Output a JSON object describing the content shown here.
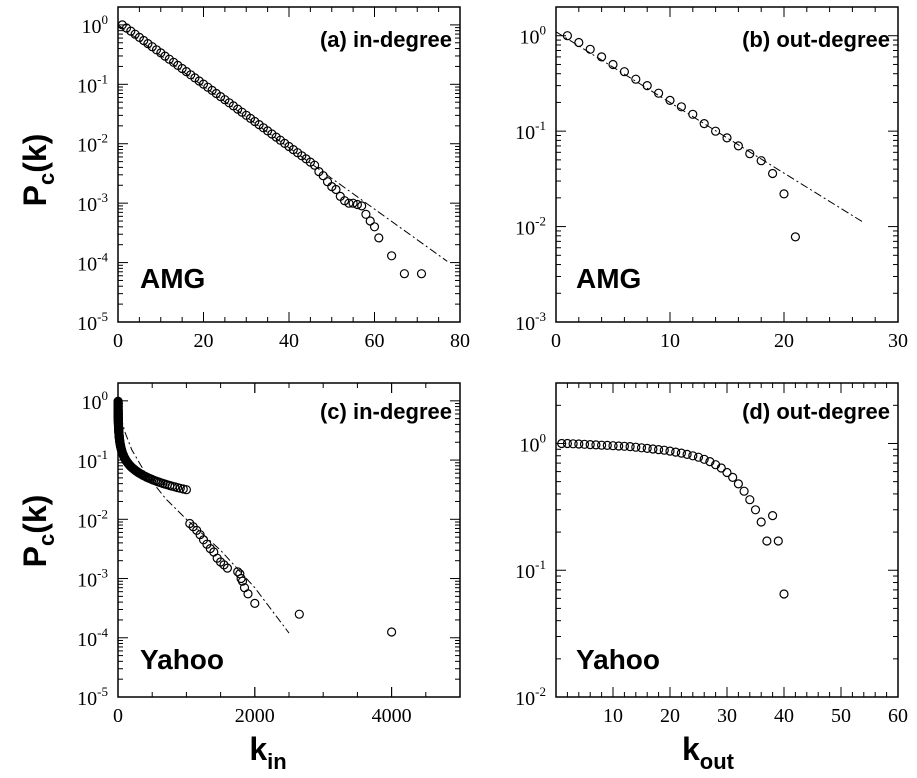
{
  "axis_titles": {
    "y_main": "P",
    "y_sub": "c",
    "y_tail": "(k)",
    "x_left_main": "k",
    "x_left_sub": "in",
    "x_right_main": "k",
    "x_right_sub": "out"
  },
  "chart_data": [
    {
      "type": "scatter",
      "panel_label": "(a) in-degree",
      "dataset_label": "AMG",
      "xlabel": "",
      "ylabel": "P_c(k)",
      "xscale": "linear",
      "yscale": "log",
      "xlim": [
        0,
        80
      ],
      "ylim": [
        1e-05,
        2
      ],
      "xticks": [
        0,
        20,
        40,
        60,
        80
      ],
      "yticks": [
        -5,
        -4,
        -3,
        -2,
        -1,
        0
      ],
      "x_minor": 5,
      "fit_line": {
        "x": [
          0,
          77
        ],
        "y": [
          1.0,
          0.000105
        ]
      },
      "series": [
        {
          "gen": "exp",
          "x_start": 1,
          "x_end": 46,
          "step": 1,
          "y0": 1.0,
          "decay": 0.1208
        },
        {
          "x": [
            47,
            48,
            49,
            50,
            51,
            52,
            53,
            54,
            55,
            56,
            57,
            58,
            59,
            60,
            61,
            64,
            67,
            71
          ],
          "y": [
            0.0034,
            0.0029,
            0.0023,
            0.0019,
            0.0017,
            0.0013,
            0.0011,
            0.001,
            0.001,
            0.00095,
            0.0009,
            0.00065,
            0.0005,
            0.0004,
            0.00026,
            0.00013,
            6.5e-05,
            6.5e-05
          ]
        }
      ]
    },
    {
      "type": "scatter",
      "panel_label": "(b) out-degree",
      "dataset_label": "AMG",
      "xlabel": "",
      "ylabel": "",
      "xscale": "linear",
      "yscale": "log",
      "xlim": [
        0,
        30
      ],
      "ylim": [
        0.001,
        2
      ],
      "xticks": [
        0,
        10,
        20,
        30
      ],
      "yticks": [
        -3,
        -2,
        -1,
        0
      ],
      "x_minor": 2,
      "fit_line": {
        "x": [
          0,
          27
        ],
        "y": [
          1.1,
          0.011
        ]
      },
      "series": [
        {
          "x": [
            1,
            2,
            3,
            4,
            5,
            6,
            7,
            8,
            9,
            10,
            11,
            12,
            13,
            14,
            15,
            16,
            17,
            18,
            19,
            20,
            21
          ],
          "y": [
            1.0,
            0.85,
            0.72,
            0.6,
            0.5,
            0.42,
            0.35,
            0.3,
            0.25,
            0.21,
            0.18,
            0.15,
            0.12,
            0.1,
            0.085,
            0.07,
            0.058,
            0.049,
            0.036,
            0.022,
            0.0078
          ]
        }
      ]
    },
    {
      "type": "scatter",
      "panel_label": "(c) in-degree",
      "dataset_label": "Yahoo",
      "xlabel": "k_in",
      "ylabel": "P_c(k)",
      "xscale": "linear",
      "yscale": "log",
      "xlim": [
        0,
        5000
      ],
      "ylim": [
        1e-05,
        2
      ],
      "xticks": [
        0,
        2000,
        4000
      ],
      "yticks": [
        -5,
        -4,
        -3,
        -2,
        -1,
        0
      ],
      "x_minor": 500,
      "fit_line": {
        "x": [
          0,
          50,
          100,
          200,
          400,
          700,
          1000,
          1500,
          2000,
          2500
        ],
        "y": [
          1.0,
          0.5,
          0.3,
          0.15,
          0.06,
          0.022,
          0.01,
          0.003,
          0.0007,
          0.00012
        ]
      },
      "series": [
        {
          "gen": "pow",
          "x_start": 1,
          "x_end": 1000,
          "n": 150,
          "a": 0.985,
          "b": 0.48,
          "c": 0.12,
          "d": 0.000124
        },
        {
          "x": [
            1050,
            1100,
            1150,
            1200,
            1250,
            1300,
            1350,
            1400,
            1450,
            1500,
            1550,
            1600,
            1750,
            1780,
            1800,
            1820,
            1850,
            1900,
            2000,
            2650,
            4000
          ],
          "y": [
            0.0085,
            0.0075,
            0.0065,
            0.0055,
            0.0045,
            0.0038,
            0.0032,
            0.0028,
            0.0022,
            0.0019,
            0.0017,
            0.0015,
            0.0013,
            0.0012,
            0.001,
            0.0009,
            0.0007,
            0.00055,
            0.00038,
            0.00025,
            0.000125
          ]
        }
      ]
    },
    {
      "type": "scatter",
      "panel_label": "(d) out-degree",
      "dataset_label": "Yahoo",
      "xlabel": "k_out",
      "ylabel": "",
      "xscale": "linear",
      "yscale": "log",
      "xlim": [
        0,
        60
      ],
      "ylim": [
        0.01,
        3
      ],
      "xticks": [
        10,
        20,
        30,
        40,
        50,
        60
      ],
      "yticks": [
        -2,
        -1,
        0
      ],
      "x_minor": 2,
      "fit_line": null,
      "series": [
        {
          "x": [
            1,
            2,
            3,
            4,
            5,
            6,
            7,
            8,
            9,
            10,
            11,
            12,
            13,
            14,
            15,
            16,
            17,
            18,
            19,
            20,
            21,
            22,
            23,
            24,
            25,
            26,
            27,
            28,
            29,
            30,
            31,
            32,
            33,
            34,
            35,
            36,
            37,
            38,
            39,
            40
          ],
          "y": [
            1.0,
            1.0,
            0.995,
            0.99,
            0.985,
            0.98,
            0.975,
            0.97,
            0.965,
            0.96,
            0.955,
            0.95,
            0.945,
            0.935,
            0.925,
            0.915,
            0.905,
            0.895,
            0.885,
            0.87,
            0.855,
            0.84,
            0.82,
            0.8,
            0.78,
            0.75,
            0.72,
            0.68,
            0.64,
            0.59,
            0.54,
            0.48,
            0.42,
            0.36,
            0.3,
            0.24,
            0.17,
            0.27,
            0.17,
            0.065
          ]
        }
      ]
    }
  ]
}
